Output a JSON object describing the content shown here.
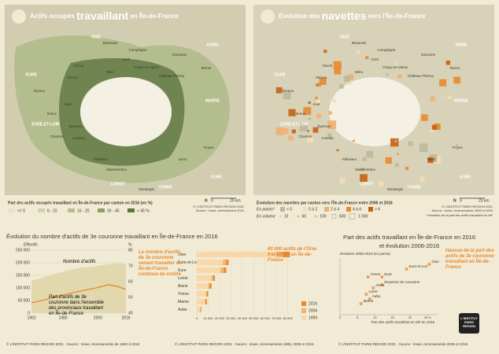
{
  "maps": [
    {
      "title": [
        "Actifs occupés",
        "travaillant",
        "en Île-de-France"
      ],
      "places": [
        "OISE",
        "Beauvais",
        "Compiègne",
        "Creil",
        "Soissons",
        "AISNE",
        "Gisors",
        "Méru",
        "Crépy-en-Valois",
        "Château-Thierry",
        "EURE",
        "Vernon",
        "Reims",
        "Évreux",
        "MARNE",
        "Dreux",
        "Anet",
        "EURE-ET-LOIR",
        "Épernon",
        "Chartres",
        "Auneau",
        "Troyes",
        "Pithiviers",
        "Sens",
        "LOIRET",
        "Malesherbes",
        "AUBE",
        "YONNE",
        "Montargis"
      ],
      "legend_title": "Part des actifs occupés travaillant en Île-de-France par canton en 2016 (en %)",
      "legend": [
        {
          "label": "<= 5",
          "color": "#e4e2cc"
        },
        {
          "label": "6 - 15",
          "color": "#cfd2b0"
        },
        {
          "label": "16 - 25",
          "color": "#b4bd8e"
        },
        {
          "label": "26 - 45",
          "color": "#8c9d66"
        },
        {
          "label": "> 45 %",
          "color": "#5e7340"
        }
      ],
      "scale": [
        "N",
        "0",
        "20 km"
      ],
      "source": [
        "© L'INSTITUT PARIS REGION 2021",
        "Source : Insee, recensement 2016"
      ]
    },
    {
      "title": [
        "Évolution des",
        "navettes",
        "vers l'Île-de-France"
      ],
      "places": [
        "OISE",
        "Beauvais",
        "Compiègne",
        "Creil",
        "Soissons",
        "AISNE",
        "Gisors",
        "Méru",
        "Crépy-en-Valois",
        "Château-Thierry",
        "EURE",
        "Vernon",
        "Reims",
        "Évreux",
        "MARNE",
        "Dreux",
        "Anet",
        "EURE-ET-LOIR",
        "Épernon",
        "Chartres",
        "Auneau",
        "Troyes",
        "Pithiviers",
        "Sens",
        "LOIRET",
        "Malesherbes",
        "AUBE",
        "YONNE",
        "Montargis"
      ],
      "legend_title": "Évolution des navettes par canton vers l'Île-de-France entre 2006 et 2016",
      "points_label": "En points*",
      "legend": [
        {
          "label": "< 0",
          "color": "#bdb99a"
        },
        {
          "label": "0 à 2",
          "color": "#f6dcb8"
        },
        {
          "label": "2 à 4",
          "color": "#f0b070"
        },
        {
          "label": "4 à 6",
          "color": "#e8892e"
        },
        {
          "label": "> 6",
          "color": "#c85f10"
        }
      ],
      "volume_label": "En volume",
      "volumes": [
        10,
        50,
        100,
        500,
        {
          "value": 1000,
          "label": "1 000"
        }
      ],
      "note": "* évolution de la part des actifs travaillant en IdF",
      "scale": [
        "N",
        "0",
        "20 km"
      ],
      "source": [
        "© L'INSTITUT PARIS REGION 2021",
        "Source : Insee, recensements 2006 et 2016"
      ]
    }
  ],
  "chart_data": [
    {
      "type": "line",
      "title": "Évolution du nombre d'actifs de 3e couronne travaillant en Île-de-France en 2016",
      "y_label": "Effectifs",
      "y2_label": "%",
      "x": [
        1962,
        1968,
        1975,
        1982,
        1990,
        1999,
        2006,
        2011,
        2016
      ],
      "series": [
        {
          "name": "Nombre d'actifs",
          "color": "#e2d8ae",
          "fill": true,
          "values": [
            128000,
            140000,
            155000,
            168000,
            180000,
            186000,
            195000,
            198000,
            197000
          ]
        },
        {
          "name": "Part d'actifs de 3e couronne dans l'ensemble des provinciaux travaillant en Île-de-France",
          "color": "#e8892e",
          "axis": "y2",
          "values": [
            46.5,
            48,
            50,
            52,
            54,
            56,
            58,
            57,
            55
          ]
        }
      ],
      "xlim": [
        1962,
        2016
      ],
      "xticks": [
        1962,
        1980,
        2000,
        2016
      ],
      "ylim": [
        0,
        250000
      ],
      "yticks": [
        0,
        {
          "value": 50000,
          "label": "50 000"
        },
        {
          "value": 100000,
          "label": "100 000"
        },
        {
          "value": 150000,
          "label": "150 000"
        },
        {
          "value": 200000,
          "label": "200 000"
        },
        {
          "value": 250000,
          "label": "250 000"
        }
      ],
      "y2lim": [
        40,
        80
      ],
      "y2ticks": [
        40,
        50,
        60,
        70,
        80
      ],
      "annotation": "Le nombre d'actifs de 3e couronne venant travailler en Île-de-France continue de croître",
      "source": "© L'INSTITUT PARIS REGION 2021 · Source : Insee, recensements de 1962 à 2016"
    },
    {
      "type": "bar",
      "orientation": "horizontal",
      "categories": [
        "Oise",
        "Eure-et-Loir",
        "Eure",
        "Loiret",
        "Aisne",
        "Yonne",
        "Marne",
        "Aube"
      ],
      "series": [
        {
          "name": "2016",
          "color": "#e8892e",
          "values": [
            82000,
            28000,
            26000,
            16000,
            13000,
            10000,
            9000,
            4000
          ]
        },
        {
          "name": "2006",
          "color": "#f2b36b",
          "values": [
            76000,
            26000,
            24000,
            14500,
            11500,
            9000,
            8000,
            3500
          ]
        },
        {
          "name": "1999",
          "color": "#f8d8a8",
          "values": [
            70000,
            23000,
            21000,
            13000,
            10000,
            8000,
            7000,
            3000
          ]
        }
      ],
      "xlim": [
        0,
        90000
      ],
      "xticks": [
        0,
        {
          "value": 10000,
          "label": "10 000"
        },
        {
          "value": 20000,
          "label": "20 000"
        },
        {
          "value": 30000,
          "label": "30 000"
        },
        {
          "value": 40000,
          "label": "40 000"
        },
        {
          "value": 50000,
          "label": "50 000"
        },
        {
          "value": 60000,
          "label": "60 000"
        },
        {
          "value": 70000,
          "label": "70 000"
        },
        {
          "value": 80000,
          "label": "80 000"
        }
      ],
      "annotation": "80 000 actifs de l'Oise travaillent en Île-de-France",
      "source": "© L'INSTITUT PARIS REGION 2021 · Source : Insee, recensements 1999, 2006 et 2016"
    },
    {
      "type": "scatter",
      "title": "Part des actifs travaillant en Île-de-France en 2016",
      "subtitle": "et évolution 2006-2016",
      "y_label": "Évolution 2006-2016 (en points)",
      "x_label": "Part des actifs travaillant en IdF en 2016",
      "labels": [
        "Oise",
        "Eure-et-Loir",
        "Yonne",
        "Eure",
        "Moyenne 3e couronne",
        "Aisne",
        "Loiret",
        "Aube",
        "Marne"
      ],
      "x": [
        25.5,
        19,
        8,
        12,
        12,
        9.5,
        7.5,
        8.5,
        6
      ],
      "values": [
        3.2,
        2.9,
        2.4,
        2.4,
        1.9,
        1.7,
        1.3,
        1.0,
        0.7
      ],
      "color": "#f0a050",
      "xlim": [
        0,
        27
      ],
      "xticks": [
        0,
        5,
        10,
        15,
        20,
        {
          "value": 25,
          "label": "25 %"
        }
      ],
      "ylim": [
        0,
        3.5
      ],
      "annotation": "Hausse de la part des actifs de 3e couronne travaillant en Île-de-France",
      "source": "© L'INSTITUT PARIS REGION 2021 · Source : Insee, recensements 2006 et 2016"
    }
  ],
  "logo": [
    "L'INSTITUT",
    "PARIS",
    "REGION"
  ]
}
